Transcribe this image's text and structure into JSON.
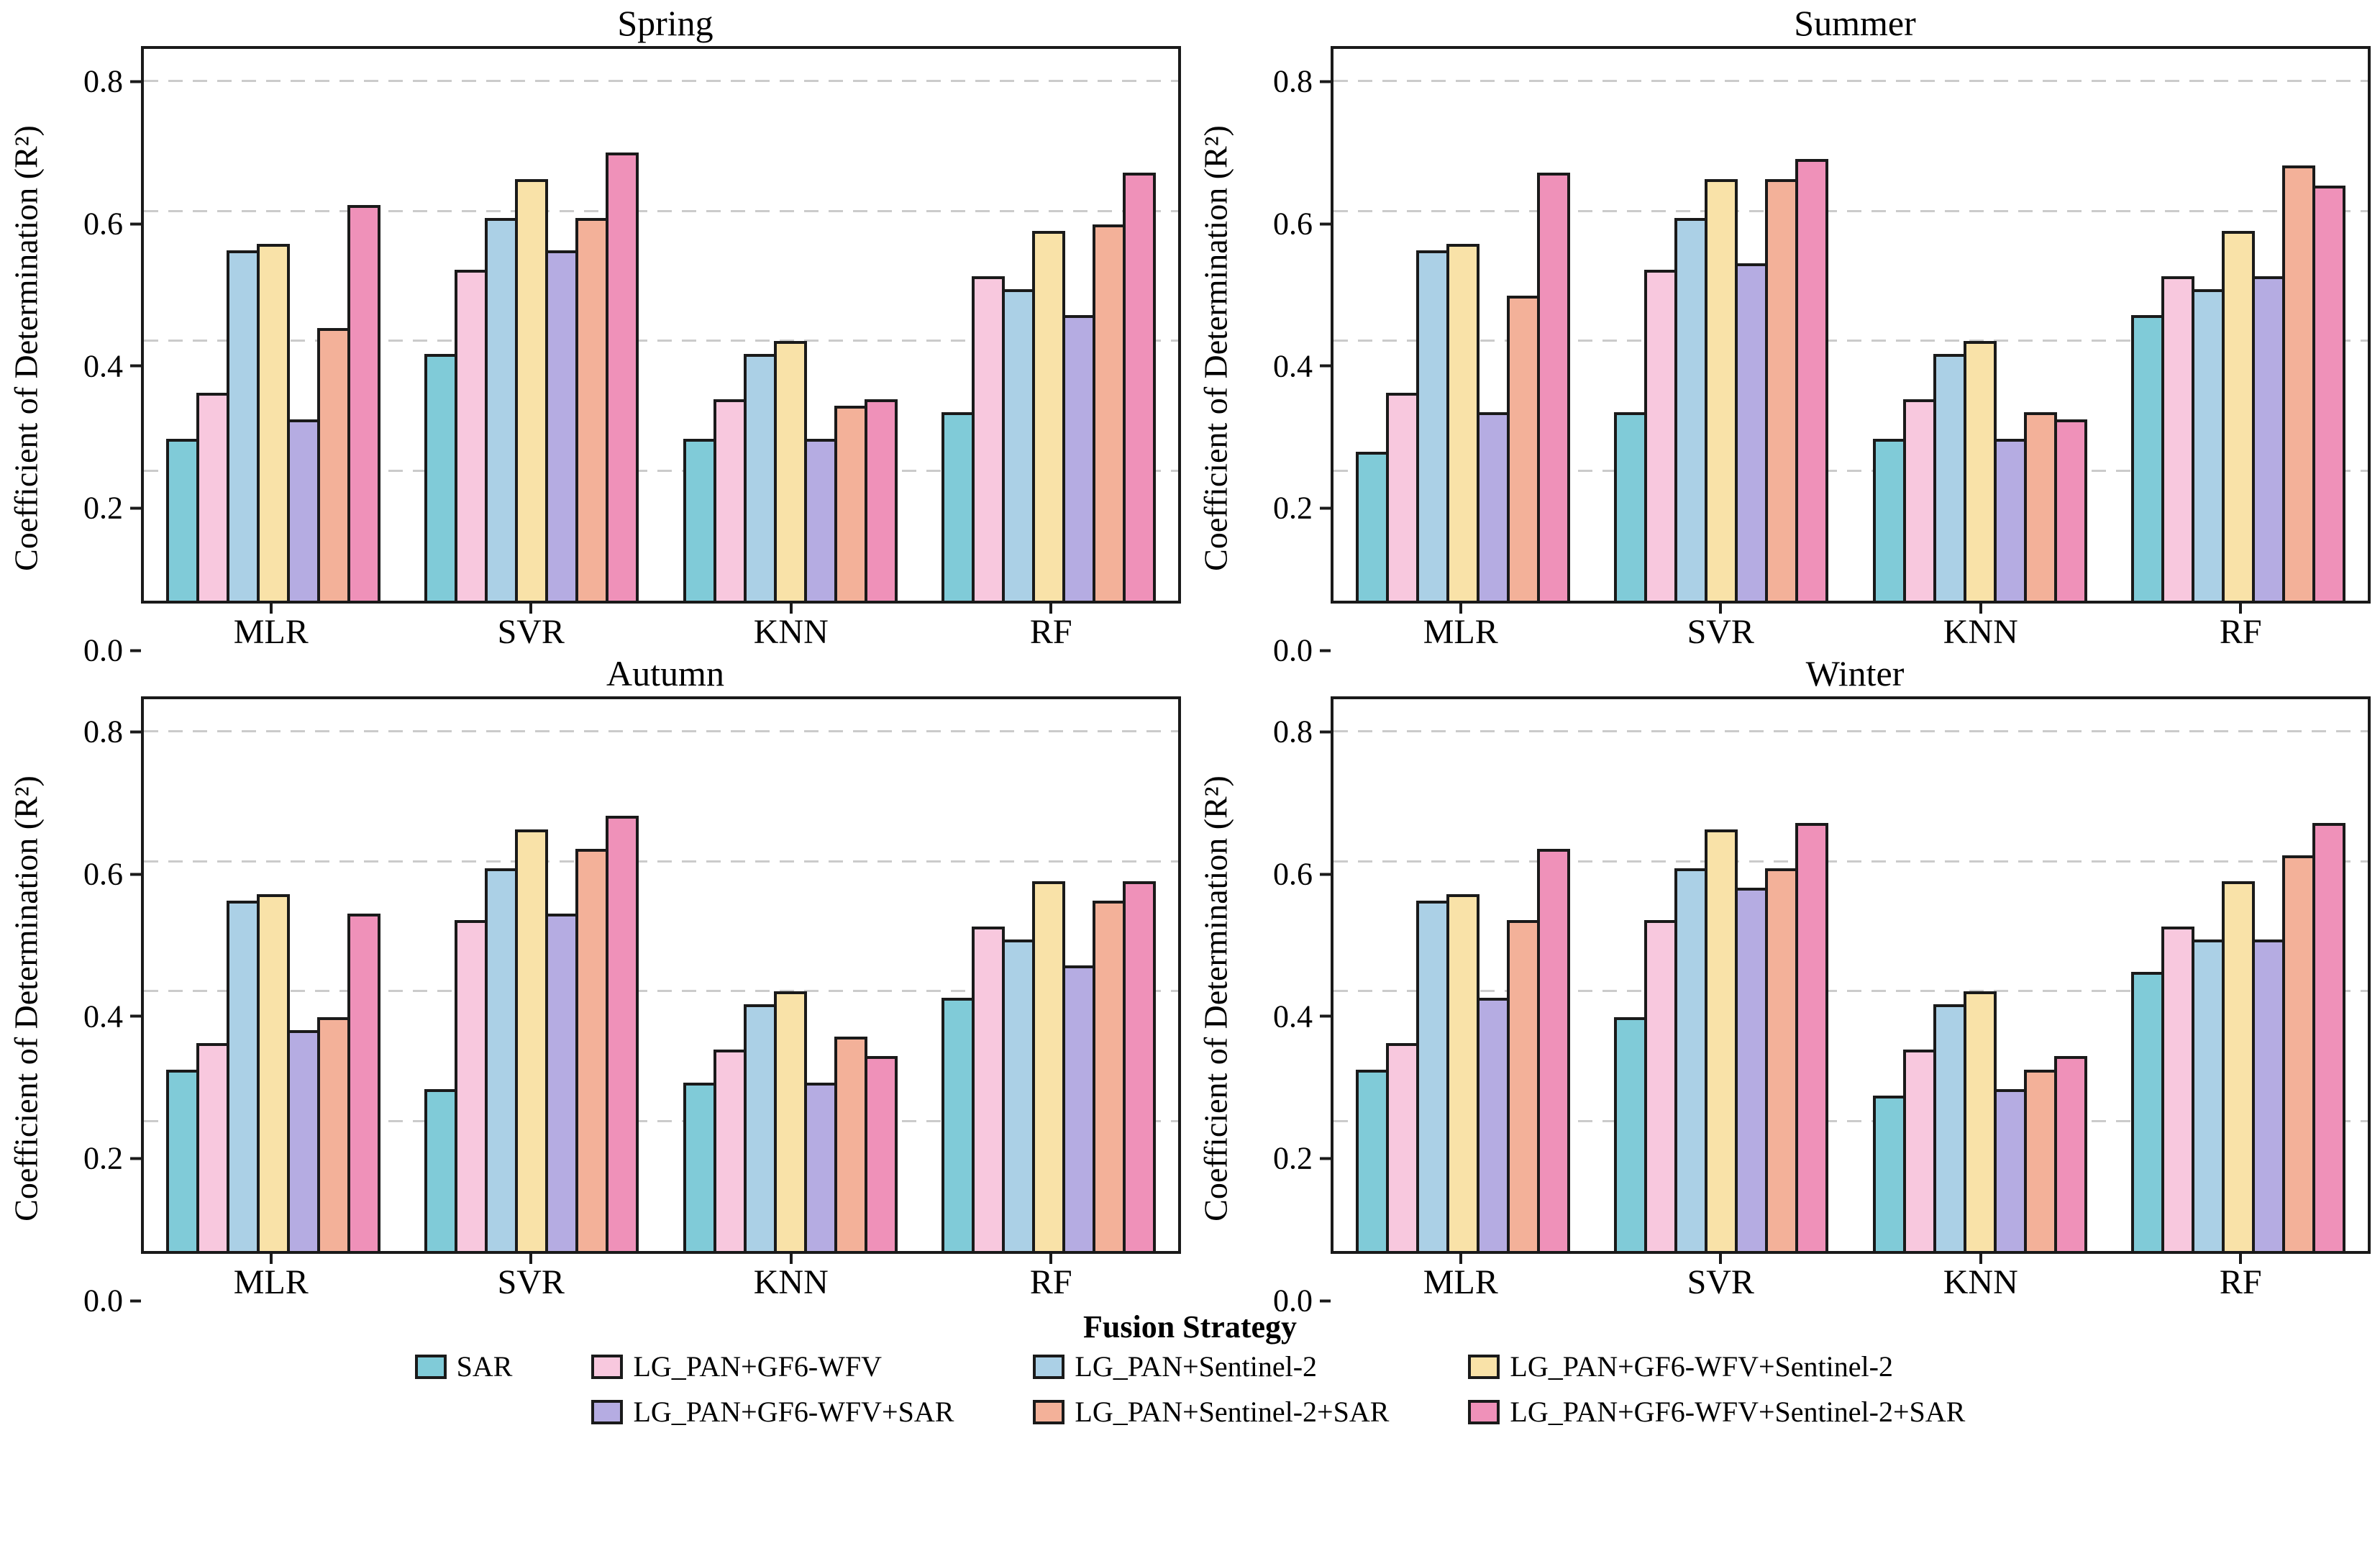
{
  "figure": {
    "ylabel": "Coefficient of Determination (R²)",
    "xlabel_legend_title": "Fusion Strategy",
    "ylim": [
      0,
      0.85
    ],
    "yticks": [
      0,
      0.2,
      0.4,
      0.6,
      0.8
    ],
    "ytick_labels": [
      "0.0",
      "0.2",
      "0.4",
      "0.6",
      "0.8"
    ],
    "categories": [
      "MLR",
      "SVR",
      "KNN",
      "RF"
    ],
    "grid_color": "#cbcbcb",
    "bar_edge_color": "#1a1a1a",
    "palette": {
      "SAR": "#80CBD8",
      "LG_PAN+GF6-WFV": "#F8C8DE",
      "LG_PAN+Sentinel-2": "#ABD0E6",
      "LG_PAN+GF6-WFV+Sentinel-2": "#F9E2A8",
      "LG_PAN+GF6-WFV+SAR": "#B5ACE2",
      "LG_PAN+Sentinel-2+SAR": "#F3B199",
      "LG_PAN+GF6-WFV+Sentinel-2+SAR": "#EF91B9"
    }
  },
  "legend": {
    "title": "Fusion Strategy",
    "rows": [
      [
        "SAR",
        "LG_PAN+GF6-WFV",
        "LG_PAN+Sentinel-2",
        "LG_PAN+GF6-WFV+Sentinel-2"
      ],
      [
        null,
        "LG_PAN+GF6-WFV+SAR",
        "LG_PAN+Sentinel-2+SAR",
        "LG_PAN+GF6-WFV+Sentinel-2+SAR"
      ]
    ]
  },
  "chart_data": [
    {
      "type": "bar",
      "title": "Spring",
      "ylabel": "Coefficient of Determination (R²)",
      "ylim": [
        0,
        0.85
      ],
      "yticks": [
        0,
        0.2,
        0.4,
        0.6,
        0.8
      ],
      "ytick_labels": [
        "0.0",
        "0.2",
        "0.4",
        "0.6",
        "0.8"
      ],
      "grid": "dashed-horizontal",
      "legend_position": "figure-bottom",
      "categories": [
        "MLR",
        "SVR",
        "KNN",
        "RF"
      ],
      "series": [
        {
          "name": "SAR",
          "values": [
            0.25,
            0.38,
            0.25,
            0.29
          ]
        },
        {
          "name": "LG_PAN+GF6-WFV",
          "values": [
            0.32,
            0.51,
            0.31,
            0.5
          ]
        },
        {
          "name": "LG_PAN+Sentinel-2",
          "values": [
            0.54,
            0.59,
            0.38,
            0.48
          ]
        },
        {
          "name": "LG_PAN+GF6-WFV+Sentinel-2",
          "values": [
            0.55,
            0.65,
            0.4,
            0.57
          ]
        },
        {
          "name": "LG_PAN+GF6-WFV+SAR",
          "values": [
            0.28,
            0.54,
            0.25,
            0.44
          ]
        },
        {
          "name": "LG_PAN+Sentinel-2+SAR",
          "values": [
            0.42,
            0.59,
            0.3,
            0.58
          ]
        },
        {
          "name": "LG_PAN+GF6-WFV+Sentinel-2+SAR",
          "values": [
            0.61,
            0.69,
            0.31,
            0.66
          ]
        }
      ]
    },
    {
      "type": "bar",
      "title": "Summer",
      "ylabel": "Coefficient of Determination (R²)",
      "ylim": [
        0,
        0.85
      ],
      "yticks": [
        0,
        0.2,
        0.4,
        0.6,
        0.8
      ],
      "ytick_labels": [
        "0.0",
        "0.2",
        "0.4",
        "0.6",
        "0.8"
      ],
      "grid": "dashed-horizontal",
      "legend_position": "figure-bottom",
      "categories": [
        "MLR",
        "SVR",
        "KNN",
        "RF"
      ],
      "series": [
        {
          "name": "SAR",
          "values": [
            0.23,
            0.29,
            0.25,
            0.44
          ]
        },
        {
          "name": "LG_PAN+GF6-WFV",
          "values": [
            0.32,
            0.51,
            0.31,
            0.5
          ]
        },
        {
          "name": "LG_PAN+Sentinel-2",
          "values": [
            0.54,
            0.59,
            0.38,
            0.48
          ]
        },
        {
          "name": "LG_PAN+GF6-WFV+Sentinel-2",
          "values": [
            0.55,
            0.65,
            0.4,
            0.57
          ]
        },
        {
          "name": "LG_PAN+GF6-WFV+SAR",
          "values": [
            0.29,
            0.52,
            0.25,
            0.5
          ]
        },
        {
          "name": "LG_PAN+Sentinel-2+SAR",
          "values": [
            0.47,
            0.65,
            0.29,
            0.67
          ]
        },
        {
          "name": "LG_PAN+GF6-WFV+Sentinel-2+SAR",
          "values": [
            0.66,
            0.68,
            0.28,
            0.64
          ]
        }
      ]
    },
    {
      "type": "bar",
      "title": "Autumn",
      "ylabel": "Coefficient of Determination (R²)",
      "ylim": [
        0,
        0.85
      ],
      "yticks": [
        0,
        0.2,
        0.4,
        0.6,
        0.8
      ],
      "ytick_labels": [
        "0.0",
        "0.2",
        "0.4",
        "0.6",
        "0.8"
      ],
      "grid": "dashed-horizontal",
      "legend_position": "figure-bottom",
      "categories": [
        "MLR",
        "SVR",
        "KNN",
        "RF"
      ],
      "series": [
        {
          "name": "SAR",
          "values": [
            0.28,
            0.25,
            0.26,
            0.39
          ]
        },
        {
          "name": "LG_PAN+GF6-WFV",
          "values": [
            0.32,
            0.51,
            0.31,
            0.5
          ]
        },
        {
          "name": "LG_PAN+Sentinel-2",
          "values": [
            0.54,
            0.59,
            0.38,
            0.48
          ]
        },
        {
          "name": "LG_PAN+GF6-WFV+Sentinel-2",
          "values": [
            0.55,
            0.65,
            0.4,
            0.57
          ]
        },
        {
          "name": "LG_PAN+GF6-WFV+SAR",
          "values": [
            0.34,
            0.52,
            0.26,
            0.44
          ]
        },
        {
          "name": "LG_PAN+Sentinel-2+SAR",
          "values": [
            0.36,
            0.62,
            0.33,
            0.54
          ]
        },
        {
          "name": "LG_PAN+GF6-WFV+Sentinel-2+SAR",
          "values": [
            0.52,
            0.67,
            0.3,
            0.57
          ]
        }
      ]
    },
    {
      "type": "bar",
      "title": "Winter",
      "ylabel": "Coefficient of Determination (R²)",
      "ylim": [
        0,
        0.85
      ],
      "yticks": [
        0,
        0.2,
        0.4,
        0.6,
        0.8
      ],
      "ytick_labels": [
        "0.0",
        "0.2",
        "0.4",
        "0.6",
        "0.8"
      ],
      "grid": "dashed-horizontal",
      "legend_position": "figure-bottom",
      "categories": [
        "MLR",
        "SVR",
        "KNN",
        "RF"
      ],
      "series": [
        {
          "name": "SAR",
          "values": [
            0.28,
            0.36,
            0.24,
            0.43
          ]
        },
        {
          "name": "LG_PAN+GF6-WFV",
          "values": [
            0.32,
            0.51,
            0.31,
            0.5
          ]
        },
        {
          "name": "LG_PAN+Sentinel-2",
          "values": [
            0.54,
            0.59,
            0.38,
            0.48
          ]
        },
        {
          "name": "LG_PAN+GF6-WFV+Sentinel-2",
          "values": [
            0.55,
            0.65,
            0.4,
            0.57
          ]
        },
        {
          "name": "LG_PAN+GF6-WFV+SAR",
          "values": [
            0.39,
            0.56,
            0.25,
            0.48
          ]
        },
        {
          "name": "LG_PAN+Sentinel-2+SAR",
          "values": [
            0.51,
            0.59,
            0.28,
            0.61
          ]
        },
        {
          "name": "LG_PAN+GF6-WFV+Sentinel-2+SAR",
          "values": [
            0.62,
            0.66,
            0.3,
            0.66
          ]
        }
      ]
    }
  ]
}
